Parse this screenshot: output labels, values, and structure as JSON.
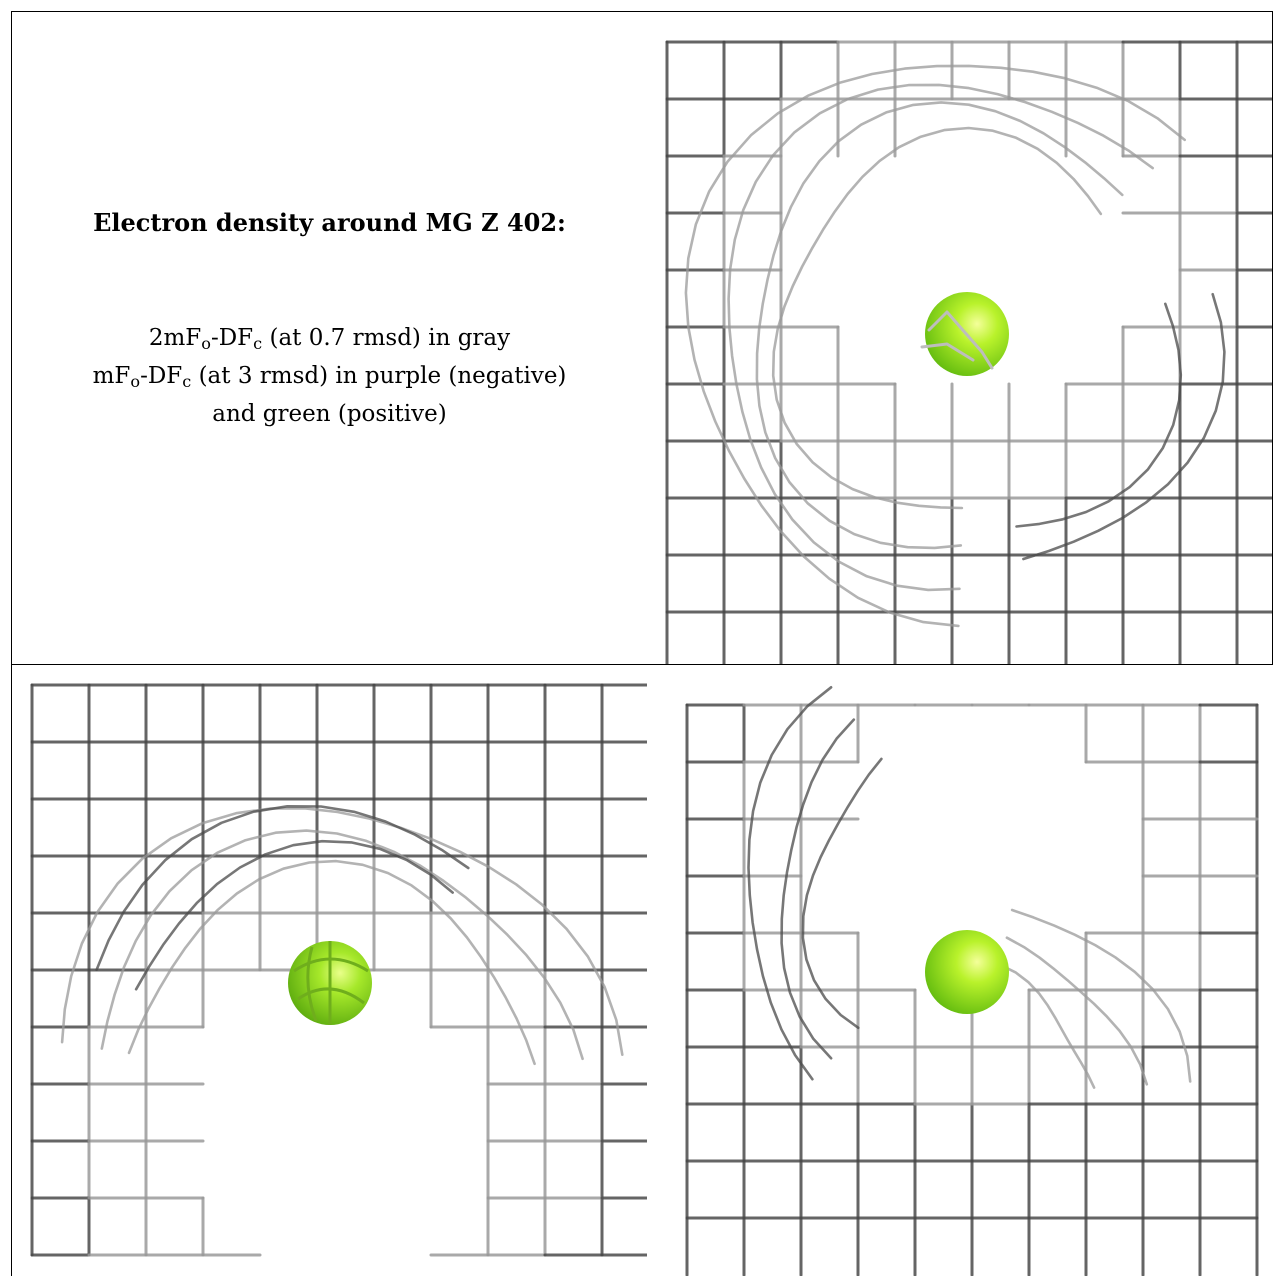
{
  "title": "Electron density around MG Z 402:",
  "legend": {
    "line1_pre": "2mF",
    "line1_sub1": "o",
    "line1_mid": "-DF",
    "line1_sub2": "c",
    "line1_post": " (at 0.7 rmsd) in gray",
    "line2_pre": "mF",
    "line2_sub1": "o",
    "line2_mid": "-DF",
    "line2_sub2": "c",
    "line2_post": " (at 3 rmsd) in purple (negative)",
    "line3": "and green (positive)"
  },
  "colors": {
    "mesh": "#9a9a9a",
    "mesh_dark": "#4a4a4a",
    "atom": "#8fe81b",
    "atom_highlight": "#e9ff7a",
    "border": "#000000"
  }
}
